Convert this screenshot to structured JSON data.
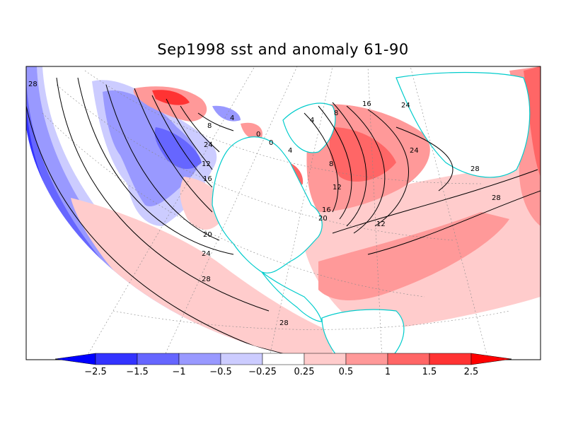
{
  "title": "Sep1998 sst and anomaly 61-90",
  "colorbar": {
    "labels": [
      "-2.5",
      "-1.5",
      "-1",
      "-0.5",
      "-0.25",
      "0.25",
      "0.5",
      "1",
      "1.5",
      "2.5"
    ],
    "colors": [
      "#0000ff",
      "#3333ff",
      "#6666ff",
      "#9999ff",
      "#ccccff",
      "#ffffff",
      "#ffcccc",
      "#ff9999",
      "#ff6666",
      "#ff3333",
      "#ff0000"
    ]
  },
  "contour_labels": [
    "28",
    "24",
    "20",
    "16",
    "12",
    "8",
    "4",
    "0",
    "28",
    "24",
    "28",
    "28",
    "24",
    "20",
    "16",
    "12",
    "8",
    "4",
    "0",
    "16",
    "12",
    "8",
    "4",
    "24",
    "28"
  ],
  "colors": {
    "coast": "#00cccc",
    "contour": "#000000",
    "grid": "#888888"
  }
}
